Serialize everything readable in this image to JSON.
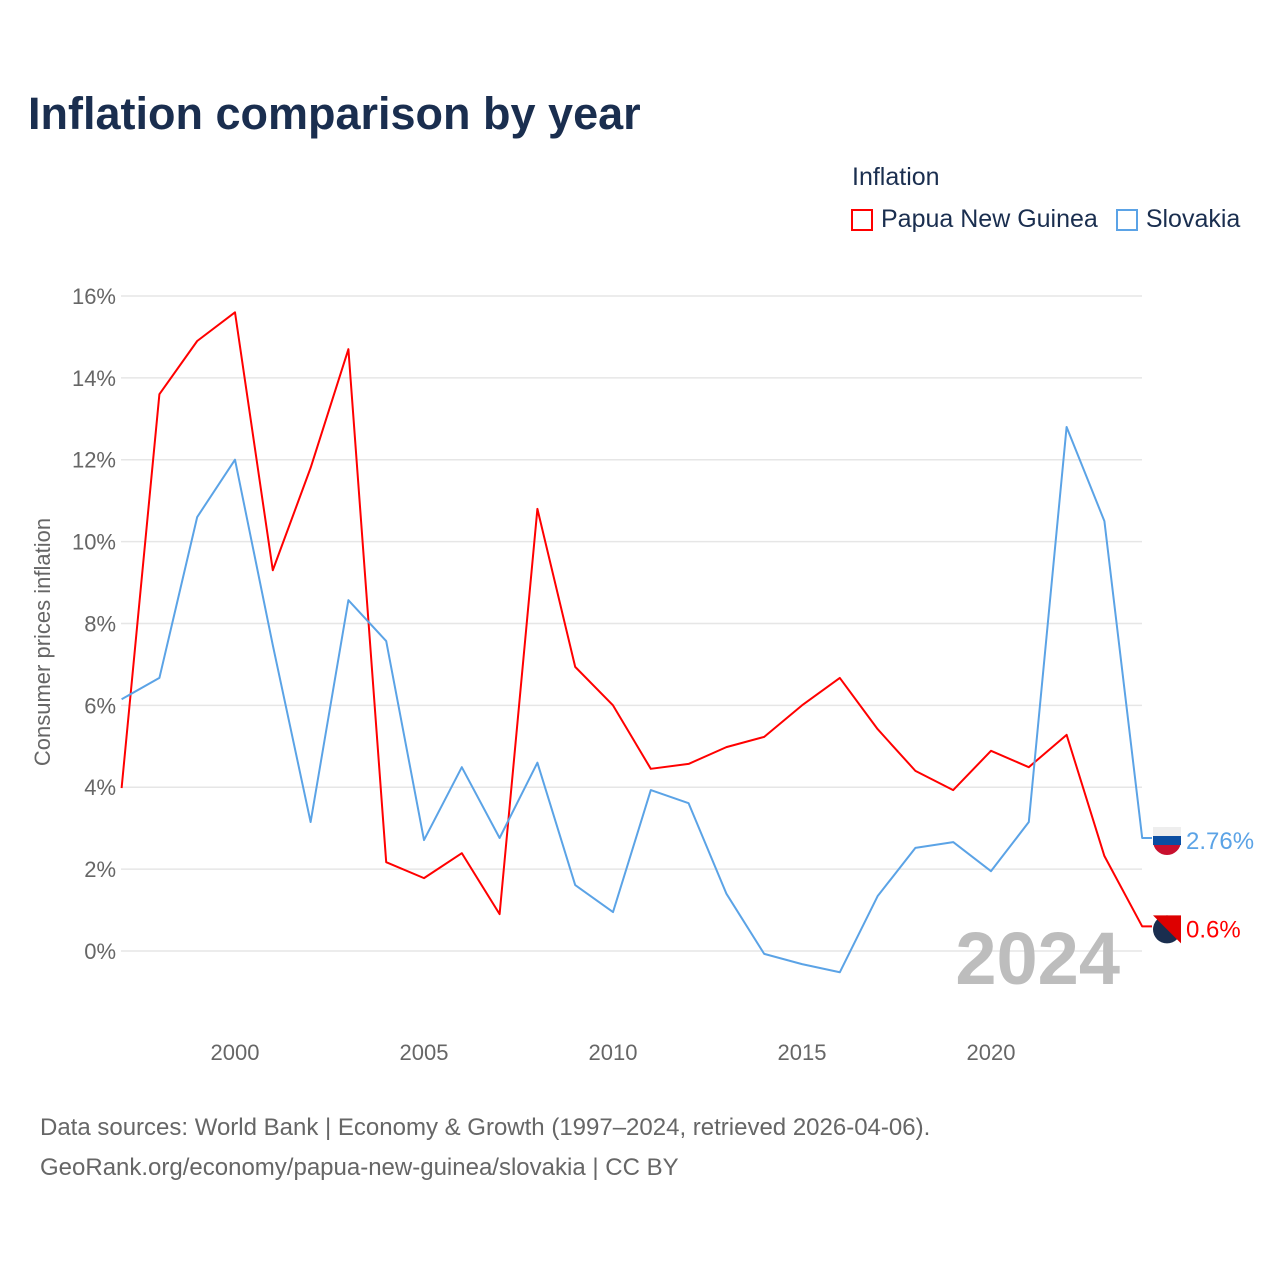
{
  "chart_data": {
    "type": "line",
    "title": "Inflation comparison by year",
    "ylabel": "Consumer prices inflation",
    "xlabel": "",
    "legend_title": "Inflation",
    "legend_placement": "top-right",
    "ylim": [
      -1.5,
      16
    ],
    "xlim": [
      1997,
      2024
    ],
    "yticks": [
      0,
      2,
      4,
      6,
      8,
      10,
      12,
      14,
      16
    ],
    "ytick_labels": [
      "0%",
      "2%",
      "4%",
      "6%",
      "8%",
      "10%",
      "12%",
      "14%",
      "16%"
    ],
    "xticks": [
      2000,
      2005,
      2010,
      2015,
      2020
    ],
    "xtick_labels": [
      "2000",
      "2005",
      "2010",
      "2015",
      "2020"
    ],
    "x": [
      1997,
      1998,
      1999,
      2000,
      2001,
      2002,
      2003,
      2004,
      2005,
      2006,
      2007,
      2008,
      2009,
      2010,
      2011,
      2012,
      2013,
      2014,
      2015,
      2016,
      2017,
      2018,
      2019,
      2020,
      2021,
      2022,
      2023,
      2024
    ],
    "series": [
      {
        "name": "Papua New Guinea",
        "color": "#ff0000",
        "end_label": "0.6%",
        "values": [
          3.98,
          13.6,
          14.9,
          15.6,
          9.3,
          11.8,
          14.7,
          2.17,
          1.78,
          2.39,
          0.9,
          10.8,
          6.94,
          6.0,
          4.45,
          4.57,
          4.98,
          5.23,
          6.0,
          6.67,
          5.42,
          4.4,
          3.93,
          4.89,
          4.49,
          5.28,
          2.32,
          0.6
        ]
      },
      {
        "name": "Slovakia",
        "color": "#5ba3e6",
        "end_label": "2.76%",
        "values": [
          6.15,
          6.67,
          10.6,
          12.0,
          7.47,
          3.15,
          8.57,
          7.57,
          2.71,
          4.49,
          2.76,
          4.6,
          1.61,
          0.95,
          3.93,
          3.61,
          1.4,
          -0.07,
          -0.32,
          -0.52,
          1.34,
          2.52,
          2.66,
          1.95,
          3.15,
          12.8,
          10.5,
          2.76
        ]
      }
    ],
    "year_watermark": "2024",
    "grid": true
  },
  "source_line1": "Data sources: World Bank | Economy & Growth (1997–2024, retrieved 2026-04-06).",
  "source_line2": "GeoRank.org/economy/papua-new-guinea/slovakia | CC BY"
}
